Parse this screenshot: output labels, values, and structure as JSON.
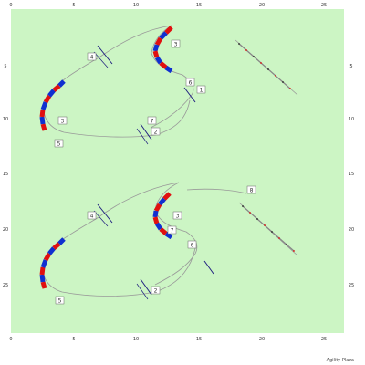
{
  "app": {
    "brand": "Agility Plaza"
  },
  "axis": {
    "x_ticks": [
      "0",
      "5",
      "10",
      "15",
      "20",
      "25"
    ],
    "y_ticks": [
      "5",
      "10",
      "15",
      "20",
      "25"
    ]
  },
  "colors": {
    "ground": "#ccf5c4",
    "path": "#999999",
    "weave_red": "#e01010",
    "weave_blue": "#1030d0",
    "jump_bar": "#202080"
  },
  "courses": [
    {
      "numbers": [
        "4",
        "3",
        "1",
        "6",
        "7",
        "2",
        "5"
      ]
    },
    {
      "numbers": [
        "4",
        "3",
        "6",
        "7",
        "8",
        "2",
        "5"
      ]
    }
  ]
}
